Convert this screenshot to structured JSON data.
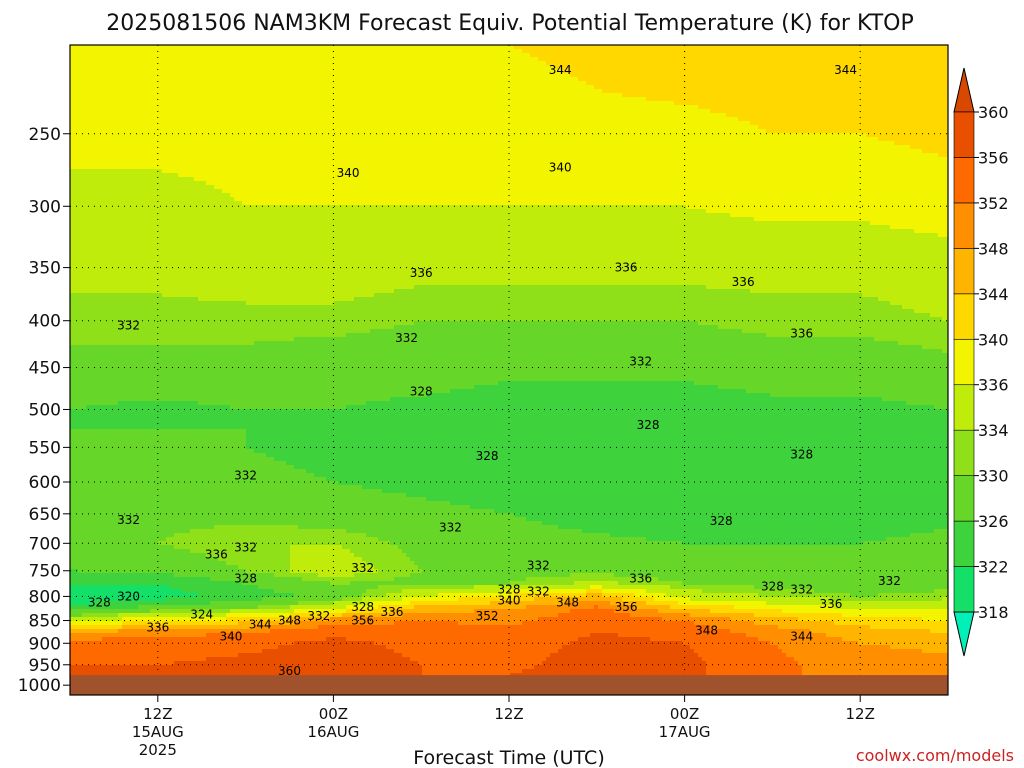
{
  "chart_data": {
    "type": "heatmap",
    "title": "2025081506 NAM3KM Forecast Equiv. Potential Temperature (K) for KTOP",
    "xlabel": "Forecast Time (UTC)",
    "ylabel": "",
    "y_ticks": [
      250,
      300,
      350,
      400,
      450,
      500,
      550,
      600,
      650,
      700,
      750,
      800,
      850,
      900,
      950,
      1000
    ],
    "y_range": [
      1025,
      200
    ],
    "y_scale": "log",
    "x_range_hours": [
      0,
      60
    ],
    "x_ticks": [
      {
        "hour": 6,
        "lines": [
          "12Z",
          "15AUG",
          "2025"
        ]
      },
      {
        "hour": 18,
        "lines": [
          "00Z",
          "16AUG"
        ]
      },
      {
        "hour": 30,
        "lines": [
          "12Z"
        ]
      },
      {
        "hour": 42,
        "lines": [
          "00Z",
          "17AUG"
        ]
      },
      {
        "hour": 54,
        "lines": [
          "12Z"
        ]
      }
    ],
    "grid": true,
    "colorbar": {
      "levels": [
        318,
        322,
        326,
        330,
        334,
        336,
        340,
        344,
        348,
        352,
        356,
        360
      ],
      "colors": [
        "#00e39a",
        "#14e068",
        "#3ed23c",
        "#66d628",
        "#8fe018",
        "#c0ec0c",
        "#f2f400",
        "#ffd800",
        "#ffb400",
        "#ff8f00",
        "#ff6a00",
        "#e85000"
      ],
      "under_color": "#00f0b8",
      "over_color": "#d84800"
    },
    "profiles": [
      {
        "hour": 0,
        "p": [
          200,
          250,
          300,
          350,
          400,
          450,
          500,
          550,
          600,
          650,
          700,
          750,
          775,
          800,
          825,
          850,
          875,
          900,
          950,
          975
        ],
        "t": [
          343,
          341,
          339,
          337,
          335,
          333,
          330,
          330,
          332,
          333,
          334,
          330,
          326,
          322,
          328,
          338,
          352,
          358,
          360,
          360
        ]
      },
      {
        "hour": 6,
        "p": [
          200,
          250,
          300,
          350,
          400,
          450,
          500,
          550,
          600,
          650,
          700,
          750,
          775,
          800,
          825,
          850,
          875,
          900,
          950,
          975
        ],
        "t": [
          343,
          341,
          339,
          337,
          335,
          333,
          329,
          331,
          332,
          333,
          334,
          331,
          326,
          324,
          332,
          344,
          354,
          358,
          360,
          360
        ]
      },
      {
        "hour": 12,
        "p": [
          200,
          250,
          300,
          350,
          400,
          450,
          500,
          550,
          600,
          650,
          700,
          750,
          775,
          800,
          825,
          850,
          875,
          900,
          950,
          975
        ],
        "t": [
          343,
          341,
          340,
          338,
          335,
          333,
          330,
          330,
          331,
          333,
          336,
          334,
          330,
          328,
          334,
          346,
          356,
          359,
          361,
          361
        ]
      },
      {
        "hour": 18,
        "p": [
          200,
          250,
          300,
          350,
          400,
          450,
          500,
          550,
          600,
          650,
          700,
          750,
          775,
          800,
          825,
          850,
          875,
          900,
          950,
          975
        ],
        "t": [
          344,
          341,
          340,
          338,
          335,
          332,
          330,
          329,
          330,
          332,
          336,
          338,
          334,
          331,
          340,
          354,
          359,
          361,
          362,
          362
        ]
      },
      {
        "hour": 24,
        "p": [
          200,
          250,
          300,
          350,
          400,
          450,
          500,
          550,
          600,
          650,
          700,
          750,
          775,
          800,
          825,
          850,
          875,
          900,
          950,
          975
        ],
        "t": [
          344,
          342,
          340,
          337,
          334,
          332,
          329,
          329,
          329,
          331,
          333,
          334,
          333,
          340,
          350,
          356,
          358,
          359,
          360,
          360
        ]
      },
      {
        "hour": 30,
        "p": [
          200,
          250,
          300,
          350,
          400,
          450,
          500,
          550,
          600,
          650,
          700,
          750,
          775,
          800,
          825,
          850,
          875,
          900,
          950,
          975
        ],
        "t": [
          344,
          342,
          340,
          337,
          334,
          331,
          328,
          328,
          328,
          330,
          332,
          333,
          334,
          345,
          352,
          355,
          357,
          358,
          359,
          360
        ]
      },
      {
        "hour": 36,
        "p": [
          200,
          250,
          300,
          350,
          400,
          450,
          500,
          550,
          600,
          650,
          700,
          750,
          775,
          800,
          825,
          850,
          875,
          900,
          950,
          975
        ],
        "t": [
          345,
          343,
          340,
          337,
          334,
          331,
          328,
          327,
          326,
          328,
          331,
          333,
          337,
          350,
          357,
          359,
          360,
          361,
          362,
          362
        ]
      },
      {
        "hour": 42,
        "p": [
          200,
          250,
          300,
          350,
          400,
          450,
          500,
          550,
          600,
          650,
          700,
          750,
          775,
          800,
          825,
          850,
          875,
          900,
          950,
          975
        ],
        "t": [
          346,
          343,
          340,
          337,
          334,
          331,
          328,
          327,
          326,
          327,
          330,
          332,
          334,
          338,
          348,
          356,
          359,
          360,
          361,
          361
        ]
      },
      {
        "hour": 48,
        "p": [
          200,
          250,
          300,
          350,
          400,
          450,
          500,
          550,
          600,
          650,
          700,
          750,
          775,
          800,
          825,
          850,
          875,
          900,
          950,
          975
        ],
        "t": [
          346,
          344,
          341,
          337,
          335,
          332,
          329,
          328,
          327,
          328,
          330,
          332,
          333,
          336,
          343,
          350,
          354,
          356,
          357,
          357
        ]
      },
      {
        "hour": 54,
        "p": [
          200,
          250,
          300,
          350,
          400,
          450,
          500,
          550,
          600,
          650,
          700,
          750,
          775,
          800,
          825,
          850,
          875,
          900,
          950,
          975
        ],
        "t": [
          347,
          344,
          341,
          337,
          335,
          332,
          329,
          328,
          327,
          328,
          330,
          331,
          332,
          334,
          340,
          346,
          350,
          352,
          354,
          354
        ]
      },
      {
        "hour": 60,
        "p": [
          200,
          250,
          300,
          350,
          400,
          450,
          500,
          550,
          600,
          650,
          700,
          750,
          775,
          800,
          825,
          850,
          875,
          900,
          950,
          975
        ],
        "t": [
          348,
          345,
          342,
          338,
          336,
          333,
          330,
          329,
          328,
          329,
          331,
          332,
          333,
          335,
          340,
          344,
          348,
          351,
          353,
          353
        ]
      }
    ],
    "surface_pressure_hpa": 975,
    "ground_color": "#a0522d",
    "contour_labels": [
      {
        "text": "344",
        "hour": 33.5,
        "p": 213
      },
      {
        "text": "344",
        "hour": 53,
        "p": 213
      },
      {
        "text": "340",
        "hour": 19,
        "p": 276
      },
      {
        "text": "340",
        "hour": 33.5,
        "p": 272
      },
      {
        "text": "336",
        "hour": 24,
        "p": 355
      },
      {
        "text": "336",
        "hour": 38,
        "p": 350
      },
      {
        "text": "336",
        "hour": 46,
        "p": 363
      },
      {
        "text": "332",
        "hour": 4,
        "p": 405
      },
      {
        "text": "332",
        "hour": 23,
        "p": 418
      },
      {
        "text": "336",
        "hour": 50,
        "p": 413
      },
      {
        "text": "332",
        "hour": 39,
        "p": 443
      },
      {
        "text": "328",
        "hour": 24,
        "p": 478
      },
      {
        "text": "328",
        "hour": 39.5,
        "p": 520
      },
      {
        "text": "328",
        "hour": 28.5,
        "p": 562
      },
      {
        "text": "328",
        "hour": 50,
        "p": 560
      },
      {
        "text": "332",
        "hour": 12,
        "p": 590
      },
      {
        "text": "332",
        "hour": 4,
        "p": 660
      },
      {
        "text": "332",
        "hour": 26,
        "p": 673
      },
      {
        "text": "328",
        "hour": 44.5,
        "p": 662
      },
      {
        "text": "336",
        "hour": 10,
        "p": 720
      },
      {
        "text": "332",
        "hour": 12,
        "p": 707
      },
      {
        "text": "332",
        "hour": 20,
        "p": 745
      },
      {
        "text": "332",
        "hour": 32,
        "p": 740
      },
      {
        "text": "328",
        "hour": 12,
        "p": 765
      },
      {
        "text": "336",
        "hour": 39,
        "p": 765
      },
      {
        "text": "332",
        "hour": 56,
        "p": 770
      },
      {
        "text": "328",
        "hour": 30,
        "p": 786
      },
      {
        "text": "332",
        "hour": 32,
        "p": 790
      },
      {
        "text": "328",
        "hour": 48,
        "p": 780
      },
      {
        "text": "332",
        "hour": 50,
        "p": 786
      },
      {
        "text": "320",
        "hour": 4,
        "p": 800
      },
      {
        "text": "328",
        "hour": 2,
        "p": 812
      },
      {
        "text": "340",
        "hour": 30,
        "p": 808
      },
      {
        "text": "348",
        "hour": 34,
        "p": 812
      },
      {
        "text": "336",
        "hour": 52,
        "p": 815
      },
      {
        "text": "328",
        "hour": 20,
        "p": 822
      },
      {
        "text": "336",
        "hour": 22,
        "p": 832
      },
      {
        "text": "324",
        "hour": 9,
        "p": 837
      },
      {
        "text": "352",
        "hour": 28.5,
        "p": 840
      },
      {
        "text": "356",
        "hour": 38,
        "p": 822
      },
      {
        "text": "332",
        "hour": 17,
        "p": 840
      },
      {
        "text": "356",
        "hour": 20,
        "p": 850
      },
      {
        "text": "348",
        "hour": 15,
        "p": 850
      },
      {
        "text": "344",
        "hour": 13,
        "p": 858
      },
      {
        "text": "336",
        "hour": 6,
        "p": 865
      },
      {
        "text": "340",
        "hour": 11,
        "p": 885
      },
      {
        "text": "348",
        "hour": 43.5,
        "p": 872
      },
      {
        "text": "344",
        "hour": 50,
        "p": 885
      },
      {
        "text": "360",
        "hour": 15,
        "p": 965
      }
    ]
  },
  "watermark": "coolwx.com/models"
}
